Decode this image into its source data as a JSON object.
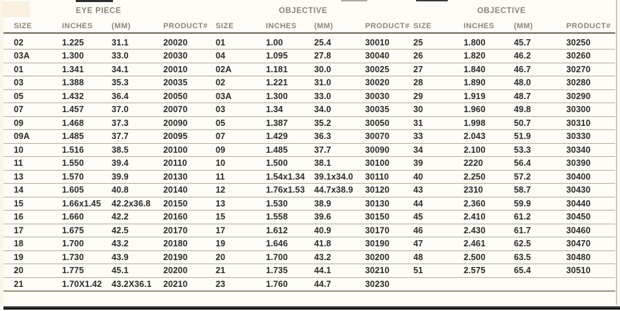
{
  "page": {
    "colors": {
      "background": "#fdfcf7",
      "row_line": "#b2af99",
      "header_line": "#6c6957",
      "header_text": "#8b8577",
      "data_text": "#2d2b26",
      "bottom_bar": "#161615"
    }
  },
  "table": {
    "groups": [
      {
        "title": "EYE PIECE"
      },
      {
        "title": "OBJECTIVE"
      },
      {
        "title": "OBJECTIVE"
      }
    ],
    "column_headers": [
      "SIZE",
      "INCHES",
      "(MM)",
      "PRODUCT#",
      "SIZE",
      "INCHES",
      "(MM)",
      "PRODUCT#",
      "SIZE",
      "INCHES",
      "(MM)",
      "PRODUCT#"
    ],
    "column_kinds": [
      "size",
      "inches",
      "mm",
      "product",
      "size",
      "inches",
      "mm",
      "product",
      "size",
      "inches",
      "mm",
      "product"
    ],
    "rows": [
      [
        "02",
        "1.225",
        "31.1",
        "20020",
        "01",
        "1.00",
        "25.4",
        "30010",
        "25",
        "1.800",
        "45.7",
        "30250"
      ],
      [
        "03A",
        "1.300",
        "33.0",
        "20030",
        "04",
        "1.095",
        "27.8",
        "30040",
        "26",
        "1.820",
        "46.2",
        "30260"
      ],
      [
        "01",
        "1.341",
        "34.1",
        "20010",
        "02A",
        "1.181",
        "30.0",
        "30025",
        "27",
        "1.840",
        "46.7",
        "30270"
      ],
      [
        "03",
        "1.388",
        "35.3",
        "20035",
        "02",
        "1.221",
        "31.0",
        "30020",
        "28",
        "1.890",
        "48.0",
        "30280"
      ],
      [
        "05",
        "1.432",
        "36.4",
        "20050",
        "03A",
        "1.300",
        "33.0",
        "30030",
        "29",
        "1.919",
        "48.7",
        "30290"
      ],
      [
        "07",
        "1.457",
        "37.0",
        "20070",
        "03",
        "1.34",
        "34.0",
        "30035",
        "30",
        "1.960",
        "49.8",
        "30300"
      ],
      [
        "09",
        "1.468",
        "37.3",
        "20090",
        "05",
        "1.387",
        "35.2",
        "30050",
        "31",
        "1.998",
        "50.7",
        "30310"
      ],
      [
        "09A",
        "1.485",
        "37.7",
        "20095",
        "07",
        "1.429",
        "36.3",
        "30070",
        "33",
        "2.043",
        "51.9",
        "30330"
      ],
      [
        "10",
        "1.516",
        "38.5",
        "20100",
        "09",
        "1.485",
        "37.7",
        "30090",
        "34",
        "2.100",
        "53.3",
        "30340"
      ],
      [
        "11",
        "1.550",
        "39.4",
        "20110",
        "10",
        "1.500",
        "38.1",
        "30100",
        "39",
        "2220",
        "56.4",
        "30390"
      ],
      [
        "13",
        "1.570",
        "39.9",
        "20130",
        "11",
        "1.54x1.34",
        "39.1x34.0",
        "30110",
        "40",
        "2.250",
        "57.2",
        "30400"
      ],
      [
        "14",
        "1.605",
        "40.8",
        "20140",
        "12",
        "1.76x1.53",
        "44.7x38.9",
        "30120",
        "43",
        "2310",
        "58.7",
        "30430"
      ],
      [
        "15",
        "1.66x1.45",
        "42.2x36.8",
        "20150",
        "13",
        "1.530",
        "38.9",
        "30130",
        "44",
        "2.360",
        "59.9",
        "30440"
      ],
      [
        "16",
        "1.660",
        "42.2",
        "20160",
        "15",
        "1.558",
        "39.6",
        "30150",
        "45",
        "2.410",
        "61.2",
        "30450"
      ],
      [
        "17",
        "1.675",
        "42.5",
        "20170",
        "17",
        "1.612",
        "40.9",
        "30170",
        "46",
        "2.430",
        "61.7",
        "30460"
      ],
      [
        "18",
        "1.700",
        "43.2",
        "20180",
        "19",
        "1.646",
        "41.8",
        "30190",
        "47",
        "2.461",
        "62.5",
        "30470"
      ],
      [
        "19",
        "1.730",
        "43.9",
        "20190",
        "20",
        "1.700",
        "43.2",
        "30200",
        "48",
        "2.500",
        "63.5",
        "30480"
      ],
      [
        "20",
        "1.775",
        "45.1",
        "20200",
        "21",
        "1.735",
        "44.1",
        "30210",
        "51",
        "2.575",
        "65.4",
        "30510"
      ],
      [
        "21",
        "1.70X1.42",
        "43.2X36.1",
        "20210",
        "23",
        "1.760",
        "44.7",
        "30230",
        "",
        "",
        "",
        ""
      ]
    ]
  }
}
